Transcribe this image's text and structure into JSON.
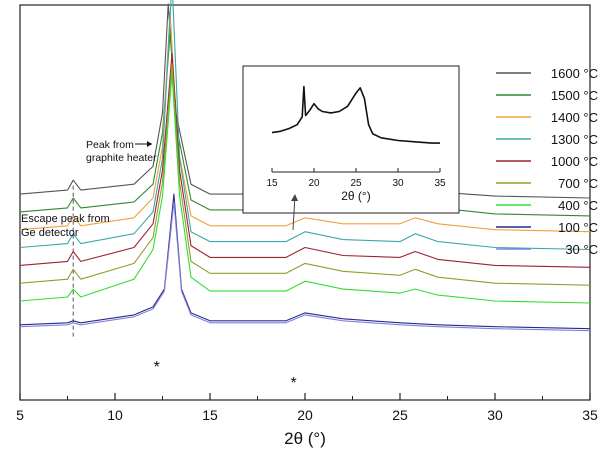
{
  "chart_data": {
    "type": "line",
    "xlabel": "2θ (°)",
    "xlim": [
      5,
      35
    ],
    "x_ticks": [
      "5",
      "10",
      "15",
      "20",
      "25",
      "30",
      "35"
    ],
    "grid": false,
    "legend_position": "right",
    "series": [
      {
        "name": "1600 °C",
        "color": "#555555",
        "x": [
          5,
          7.5,
          7.8,
          8.2,
          11,
          12,
          12.5,
          12.8,
          13.2,
          14,
          15,
          18.6,
          18.9,
          19.3,
          20,
          22,
          25,
          25.8,
          27,
          30,
          35
        ],
        "y": [
          10.4,
          10.6,
          11.1,
          10.6,
          10.9,
          11.8,
          14.5,
          20.0,
          14.5,
          10.9,
          10.4,
          10.4,
          10.9,
          10.5,
          10.6,
          10.4,
          10.6,
          10.9,
          10.5,
          10.3,
          10.2
        ]
      },
      {
        "name": "1500 °C",
        "color": "#2e8b2e",
        "x": [
          5,
          7.5,
          7.8,
          8.2,
          11,
          12,
          12.5,
          12.9,
          13.3,
          14,
          15,
          19,
          20,
          22,
          25,
          25.8,
          27,
          30,
          35
        ],
        "y": [
          9.5,
          9.7,
          10.2,
          9.7,
          10.0,
          10.9,
          13.5,
          18.5,
          13.5,
          10.1,
          9.6,
          9.6,
          9.9,
          9.6,
          9.7,
          10.0,
          9.7,
          9.4,
          9.3
        ]
      },
      {
        "name": "1400 °C",
        "color": "#f0a040",
        "x": [
          5,
          7.5,
          7.8,
          8.2,
          11,
          12,
          12.5,
          12.9,
          13.3,
          14,
          15,
          19,
          20,
          22,
          25,
          25.8,
          27,
          30,
          35
        ],
        "y": [
          8.6,
          8.8,
          9.3,
          8.8,
          9.2,
          10.2,
          12.8,
          19.6,
          12.8,
          9.3,
          8.8,
          8.8,
          9.2,
          8.9,
          8.9,
          9.2,
          8.9,
          8.6,
          8.5
        ]
      },
      {
        "name": "1300 °C",
        "color": "#3aa8a8",
        "x": [
          5,
          7.5,
          7.8,
          8.2,
          11,
          12,
          12.5,
          13.0,
          13.4,
          14,
          15,
          19,
          20,
          22,
          25,
          25.8,
          27,
          30,
          35
        ],
        "y": [
          7.7,
          7.9,
          8.4,
          7.9,
          8.4,
          9.5,
          12.2,
          21.2,
          12.2,
          8.5,
          8.0,
          8.0,
          8.5,
          8.1,
          8.0,
          8.4,
          8.0,
          7.7,
          7.6
        ]
      },
      {
        "name": "1000 °C",
        "color": "#a02030",
        "x": [
          5,
          7.5,
          7.8,
          8.2,
          11,
          12,
          12.5,
          13.0,
          13.4,
          14,
          15,
          19,
          20,
          22,
          25,
          25.8,
          27,
          30,
          35
        ],
        "y": [
          6.8,
          7.0,
          7.5,
          7.0,
          7.7,
          8.9,
          11.6,
          17.5,
          11.6,
          7.8,
          7.2,
          7.2,
          7.7,
          7.3,
          7.2,
          7.5,
          7.1,
          6.8,
          6.7
        ]
      },
      {
        "name": "700 °C",
        "color": "#9a9a30",
        "x": [
          5,
          7.5,
          7.8,
          8.2,
          11,
          12,
          12.5,
          13.0,
          13.4,
          14,
          15,
          19,
          20,
          22,
          25,
          25.8,
          27,
          30,
          35
        ],
        "y": [
          5.9,
          6.1,
          6.6,
          6.1,
          6.9,
          8.2,
          11.0,
          17.0,
          11.0,
          7.0,
          6.4,
          6.4,
          6.9,
          6.5,
          6.3,
          6.6,
          6.2,
          5.9,
          5.8
        ]
      },
      {
        "name": "400 °C",
        "color": "#33dd33",
        "x": [
          5,
          7.5,
          7.8,
          8.2,
          11,
          12,
          12.5,
          13.0,
          13.4,
          14,
          15,
          19,
          20,
          22,
          25,
          25.8,
          27,
          30,
          35
        ],
        "y": [
          5.0,
          5.2,
          5.6,
          5.2,
          6.1,
          7.6,
          10.3,
          16.5,
          10.3,
          6.2,
          5.5,
          5.5,
          6.0,
          5.6,
          5.4,
          5.6,
          5.3,
          5.0,
          4.9
        ]
      },
      {
        "name": "100 °C",
        "color": "#2a2a8a",
        "x": [
          5,
          7.5,
          7.8,
          8.2,
          11,
          12,
          12.6,
          13.1,
          13.5,
          14,
          15,
          19,
          20,
          22,
          25,
          27,
          30,
          35
        ],
        "y": [
          3.8,
          3.9,
          4.0,
          3.9,
          4.3,
          4.7,
          5.6,
          10.4,
          5.6,
          4.4,
          4.0,
          4.0,
          4.4,
          4.1,
          3.9,
          3.8,
          3.7,
          3.6
        ]
      },
      {
        "name": "30 °C",
        "color": "#8080e0",
        "x": [
          5,
          7.5,
          7.8,
          8.2,
          11,
          12,
          12.6,
          13.1,
          13.5,
          14,
          15,
          19,
          20,
          22,
          25,
          27,
          30,
          35
        ],
        "y": [
          3.7,
          3.8,
          3.9,
          3.8,
          4.2,
          4.6,
          5.5,
          10.0,
          5.5,
          4.3,
          3.9,
          3.9,
          4.3,
          4.0,
          3.8,
          3.7,
          3.6,
          3.5
        ]
      }
    ],
    "annotations": [
      {
        "text_lines": [
          "Escape  peak from",
          "Ge detector"
        ],
        "x": 7.8
      },
      {
        "text_lines": [
          "Peak from",
          "graphite heater"
        ],
        "x": 12.9
      },
      {
        "text": "*",
        "x": 12.2
      },
      {
        "text": "*",
        "x": 19.4
      }
    ],
    "inset": {
      "type": "line",
      "xlabel": "2θ (°)",
      "xlim": [
        15,
        35
      ],
      "x_ticks": [
        "15",
        "20",
        "25",
        "30",
        "35"
      ],
      "color": "#111111",
      "x": [
        15,
        16,
        17,
        18,
        18.6,
        18.8,
        19,
        19.5,
        20,
        20.5,
        21,
        22,
        23,
        24,
        25,
        25.5,
        26,
        26.5,
        27,
        28,
        30,
        32,
        34,
        35
      ],
      "y": [
        3.0,
        3.1,
        3.3,
        3.6,
        4.2,
        6.5,
        4.3,
        4.7,
        5.2,
        4.8,
        4.6,
        4.5,
        4.6,
        5.0,
        6.0,
        6.4,
        5.6,
        3.6,
        2.9,
        2.6,
        2.4,
        2.3,
        2.2,
        2.2
      ]
    }
  }
}
